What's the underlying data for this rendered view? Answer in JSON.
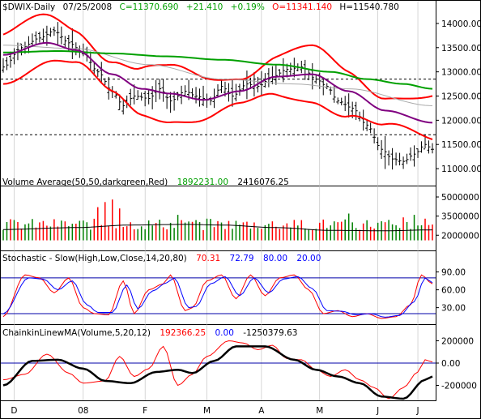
{
  "chart_data": [
    {
      "type": "candlestick",
      "header": {
        "symbol": "$DWIX-Daily",
        "date": "07/25/2008",
        "close": "C=11370.690",
        "change": "+21.410",
        "pct": "+0.19%",
        "open": "O=11341.140",
        "high": "H=11540.780"
      },
      "y_ticks": [
        11000,
        11500,
        12000,
        12500,
        13000,
        13500,
        14000
      ],
      "y_tick_labels": [
        "11000.00",
        "11500.00",
        "12000.00",
        "12500.00",
        "13000.00",
        "13500.00",
        "14000.00"
      ],
      "ylim": [
        10650,
        14250
      ],
      "reference_lines": [
        12850,
        11700
      ],
      "x_months": [
        "D",
        "08",
        "F",
        "M",
        "A",
        "M",
        "J",
        "J"
      ],
      "price_anchors": [
        [
          0,
          13100
        ],
        [
          5,
          13500
        ],
        [
          10,
          13700
        ],
        [
          14,
          13850
        ],
        [
          18,
          13600
        ],
        [
          22,
          13400
        ],
        [
          26,
          13000
        ],
        [
          30,
          12600
        ],
        [
          33,
          12300
        ],
        [
          36,
          12500
        ],
        [
          40,
          12450
        ],
        [
          43,
          12650
        ],
        [
          46,
          12400
        ],
        [
          50,
          12600
        ],
        [
          53,
          12500
        ],
        [
          57,
          12400
        ],
        [
          60,
          12700
        ],
        [
          63,
          12500
        ],
        [
          67,
          12750
        ],
        [
          70,
          12700
        ],
        [
          74,
          12900
        ],
        [
          78,
          13050
        ],
        [
          82,
          13100
        ],
        [
          86,
          12850
        ],
        [
          89,
          12700
        ],
        [
          92,
          12400
        ],
        [
          96,
          12250
        ],
        [
          100,
          11900
        ],
        [
          104,
          11400
        ],
        [
          107,
          11200
        ],
        [
          110,
          11150
        ],
        [
          113,
          11300
        ],
        [
          116,
          11500
        ],
        [
          118,
          11400
        ]
      ],
      "sma50_anchors": [
        [
          0,
          13400
        ],
        [
          15,
          13430
        ],
        [
          30,
          13380
        ],
        [
          45,
          13320
        ],
        [
          60,
          13250
        ],
        [
          75,
          13150
        ],
        [
          90,
          13000
        ],
        [
          100,
          12850
        ],
        [
          110,
          12750
        ],
        [
          118,
          12650
        ]
      ],
      "sma200_anchors": [
        [
          0,
          13550
        ],
        [
          20,
          13480
        ],
        [
          40,
          13150
        ],
        [
          60,
          12850
        ],
        [
          80,
          12750
        ],
        [
          95,
          12650
        ],
        [
          118,
          12300
        ]
      ],
      "mid_anchors": [
        [
          0,
          13350
        ],
        [
          12,
          13600
        ],
        [
          20,
          13450
        ],
        [
          30,
          12950
        ],
        [
          38,
          12650
        ],
        [
          46,
          12550
        ],
        [
          55,
          12420
        ],
        [
          65,
          12600
        ],
        [
          75,
          12900
        ],
        [
          85,
          12950
        ],
        [
          95,
          12600
        ],
        [
          105,
          12200
        ],
        [
          118,
          11950
        ]
      ],
      "band_width": 420
    },
    {
      "type": "bar",
      "title": "Volume Average(50,50,darkgreen,Red)",
      "values_text": [
        "1892231.00",
        "2416076.25"
      ],
      "y_ticks": [
        2000000,
        3500000,
        5000000
      ],
      "y_tick_labels": [
        "2000000",
        "3500000",
        "5000000"
      ],
      "ylim": [
        1000000,
        5700000
      ],
      "base": 2000000,
      "avg_anchors": [
        [
          0,
          2450000
        ],
        [
          20,
          2600000
        ],
        [
          35,
          2800000
        ],
        [
          50,
          2850000
        ],
        [
          60,
          2800000
        ],
        [
          75,
          2600000
        ],
        [
          90,
          2380000
        ],
        [
          105,
          2350000
        ],
        [
          118,
          2420000
        ]
      ],
      "spikes": [
        [
          26,
          4200000
        ],
        [
          28,
          4600000
        ],
        [
          30,
          4800000
        ],
        [
          32,
          4100000
        ],
        [
          48,
          3600000
        ],
        [
          56,
          3300000
        ],
        [
          80,
          3200000
        ],
        [
          95,
          3700000
        ],
        [
          106,
          3200000
        ],
        [
          110,
          3400000
        ],
        [
          113,
          3600000
        ],
        [
          116,
          3300000
        ]
      ]
    },
    {
      "type": "line",
      "title": "Stochastic - Slow(High,Low,Close,14,20,80)",
      "values_text": [
        "70.31",
        "72.79",
        "80.00",
        "20.00"
      ],
      "y_ticks": [
        30,
        60,
        90
      ],
      "y_tick_labels": [
        "30.00",
        "60.00",
        "90.00"
      ],
      "ylim": [
        5,
        103
      ],
      "reference_lines": [
        80,
        20
      ],
      "k_anchors": [
        [
          0,
          15
        ],
        [
          6,
          85
        ],
        [
          10,
          80
        ],
        [
          14,
          55
        ],
        [
          18,
          80
        ],
        [
          22,
          30
        ],
        [
          25,
          20
        ],
        [
          29,
          18
        ],
        [
          33,
          75
        ],
        [
          36,
          20
        ],
        [
          40,
          60
        ],
        [
          44,
          70
        ],
        [
          46,
          85
        ],
        [
          50,
          25
        ],
        [
          52,
          30
        ],
        [
          56,
          75
        ],
        [
          60,
          85
        ],
        [
          64,
          45
        ],
        [
          68,
          85
        ],
        [
          72,
          50
        ],
        [
          76,
          80
        ],
        [
          80,
          85
        ],
        [
          84,
          60
        ],
        [
          88,
          20
        ],
        [
          92,
          25
        ],
        [
          96,
          15
        ],
        [
          100,
          20
        ],
        [
          104,
          12
        ],
        [
          108,
          15
        ],
        [
          112,
          35
        ],
        [
          115,
          85
        ],
        [
          118,
          70
        ]
      ],
      "d_anchors": [
        [
          0,
          20
        ],
        [
          7,
          80
        ],
        [
          11,
          78
        ],
        [
          15,
          60
        ],
        [
          19,
          75
        ],
        [
          23,
          35
        ],
        [
          26,
          22
        ],
        [
          30,
          22
        ],
        [
          34,
          68
        ],
        [
          37,
          28
        ],
        [
          41,
          58
        ],
        [
          45,
          72
        ],
        [
          47,
          80
        ],
        [
          51,
          30
        ],
        [
          53,
          32
        ],
        [
          57,
          70
        ],
        [
          61,
          82
        ],
        [
          65,
          50
        ],
        [
          69,
          80
        ],
        [
          73,
          55
        ],
        [
          77,
          78
        ],
        [
          81,
          82
        ],
        [
          85,
          62
        ],
        [
          89,
          25
        ],
        [
          93,
          24
        ],
        [
          97,
          18
        ],
        [
          101,
          20
        ],
        [
          105,
          14
        ],
        [
          109,
          17
        ],
        [
          113,
          40
        ],
        [
          116,
          80
        ],
        [
          118,
          72
        ]
      ]
    },
    {
      "type": "line",
      "title": "ChainkinLinewMA(Volume,5,20,12)",
      "values_text": [
        "192366.25",
        "0.00",
        "-1250379.63"
      ],
      "y_ticks": [
        200000,
        0,
        -200000
      ],
      "y_tick_labels": [
        "200000",
        "0.00",
        "-200000"
      ],
      "ylim": [
        -320000,
        320000
      ],
      "reference_lines": [
        0
      ],
      "line_anchors": [
        [
          0,
          -150000
        ],
        [
          6,
          -100000
        ],
        [
          12,
          80000
        ],
        [
          18,
          -90000
        ],
        [
          22,
          -180000
        ],
        [
          28,
          -160000
        ],
        [
          32,
          60000
        ],
        [
          36,
          -120000
        ],
        [
          40,
          -50000
        ],
        [
          44,
          150000
        ],
        [
          48,
          -200000
        ],
        [
          52,
          -100000
        ],
        [
          56,
          60000
        ],
        [
          62,
          200000
        ],
        [
          66,
          180000
        ],
        [
          70,
          120000
        ],
        [
          74,
          160000
        ],
        [
          78,
          40000
        ],
        [
          82,
          30000
        ],
        [
          86,
          -60000
        ],
        [
          90,
          -120000
        ],
        [
          94,
          -60000
        ],
        [
          98,
          -150000
        ],
        [
          102,
          -220000
        ],
        [
          106,
          -320000
        ],
        [
          110,
          -220000
        ],
        [
          114,
          -80000
        ],
        [
          116,
          30000
        ],
        [
          118,
          10000
        ]
      ],
      "ma_anchors": [
        [
          0,
          -200000
        ],
        [
          8,
          20000
        ],
        [
          15,
          30000
        ],
        [
          22,
          -50000
        ],
        [
          28,
          -160000
        ],
        [
          35,
          -180000
        ],
        [
          42,
          -80000
        ],
        [
          48,
          -60000
        ],
        [
          52,
          -90000
        ],
        [
          58,
          20000
        ],
        [
          64,
          150000
        ],
        [
          72,
          150000
        ],
        [
          80,
          30000
        ],
        [
          86,
          -60000
        ],
        [
          92,
          -120000
        ],
        [
          98,
          -180000
        ],
        [
          104,
          -300000
        ],
        [
          110,
          -320000
        ],
        [
          116,
          -150000
        ],
        [
          118,
          -120000
        ]
      ]
    }
  ]
}
